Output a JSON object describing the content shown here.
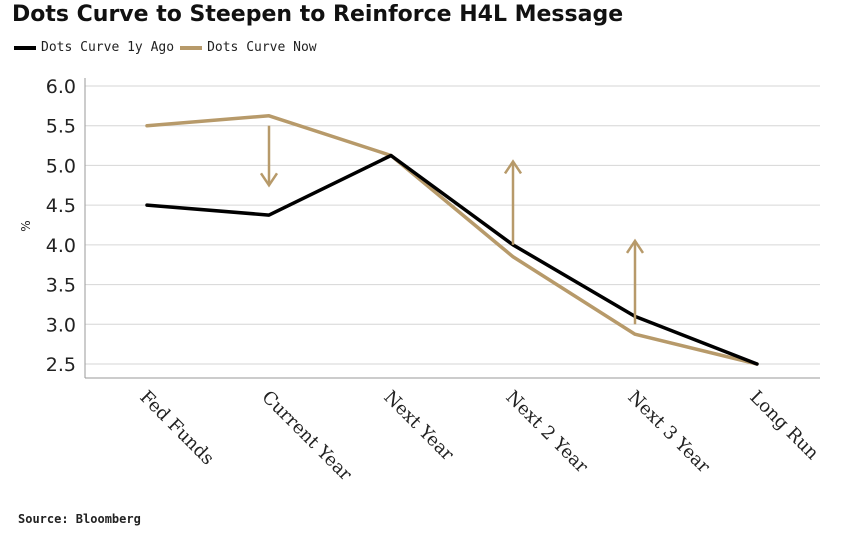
{
  "chart_data": {
    "type": "line",
    "title": "Dots Curve to Steepen to Reinforce H4L Message",
    "ylabel": "%",
    "xlabel": "",
    "ylim": [
      2.5,
      6.0
    ],
    "yticks": [
      2.5,
      3.0,
      3.5,
      4.0,
      4.5,
      5.0,
      5.5,
      6.0
    ],
    "grid": true,
    "legend_placement": "top-left",
    "categories": [
      "Fed Funds",
      "Current Year",
      "Next Year",
      "Next 2 Year",
      "Next 3 Year",
      "Long Run"
    ],
    "series": [
      {
        "name": "Dots Curve 1y Ago",
        "color": "#000000",
        "values": [
          4.5,
          4.375,
          5.125,
          4.0,
          3.1,
          2.5
        ]
      },
      {
        "name": "Dots Curve Now",
        "color": "#b79a6a",
        "values": [
          5.5,
          5.625,
          5.125,
          3.85,
          2.875,
          2.5
        ]
      }
    ],
    "annotations": [
      {
        "type": "arrow",
        "direction": "down",
        "category": "Current Year",
        "from": 5.5,
        "to": 4.75,
        "color": "#b79a6a"
      },
      {
        "type": "arrow",
        "direction": "up",
        "category": "Next 2 Year",
        "from": 4.0,
        "to": 5.05,
        "color": "#b79a6a"
      },
      {
        "type": "arrow",
        "direction": "up",
        "category": "Next 3 Year",
        "from": 3.0,
        "to": 4.05,
        "color": "#b79a6a"
      }
    ]
  },
  "source": "Source: Bloomberg"
}
